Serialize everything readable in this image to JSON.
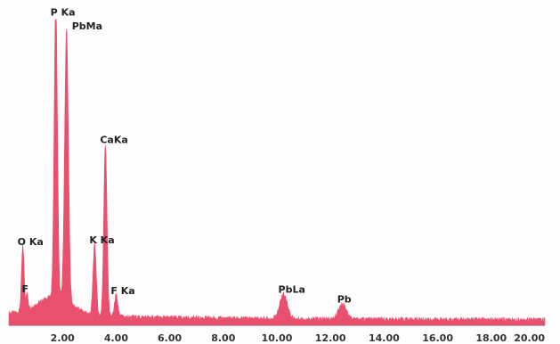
{
  "chart_data": {
    "type": "area",
    "title": "",
    "xlabel": "",
    "ylabel": "",
    "xlim": [
      0,
      20
    ],
    "ylim": [
      0,
      1
    ],
    "grid": false,
    "legend": "none",
    "fill_color": "#e8506e",
    "axis_color": "#b0b0b0",
    "x_ticks": [
      "2.00",
      "4.00",
      "6.00",
      "8.00",
      "10.00",
      "12.00",
      "14.00",
      "16.00",
      "18.00",
      "20.00"
    ],
    "x_tick_values": [
      2,
      4,
      6,
      8,
      10,
      12,
      14,
      16,
      18,
      20
    ],
    "peaks": [
      {
        "label": "F",
        "x": 0.68,
        "y": 0.05,
        "w": 0.04
      },
      {
        "label": "O Ka",
        "x": 0.52,
        "y": 0.21,
        "w": 0.05
      },
      {
        "label": "P Ka",
        "x": 1.75,
        "y": 0.97,
        "w": 0.06
      },
      {
        "label": "PbMa",
        "x": 2.15,
        "y": 0.88,
        "w": 0.07
      },
      {
        "label": "K Ka",
        "x": 3.2,
        "y": 0.23,
        "w": 0.06
      },
      {
        "label": "CaKa",
        "x": 3.6,
        "y": 0.56,
        "w": 0.06
      },
      {
        "label": "F Ka",
        "x": 4.0,
        "y": 0.07,
        "w": 0.06
      },
      {
        "label": "PbLa",
        "x": 10.25,
        "y": 0.08,
        "w": 0.14
      },
      {
        "label": "Pb",
        "x": 12.45,
        "y": 0.05,
        "w": 0.15
      }
    ]
  }
}
